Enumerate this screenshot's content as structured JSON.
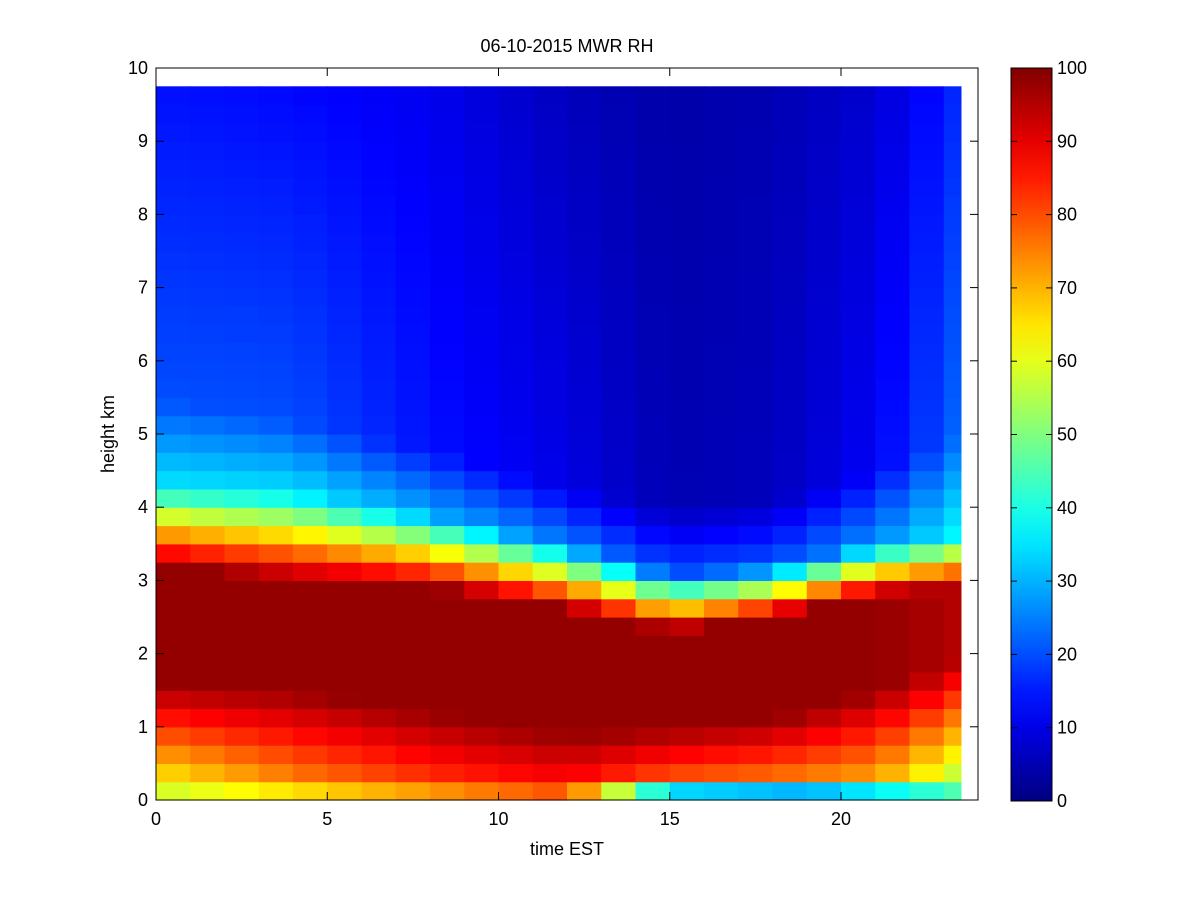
{
  "chart_data": {
    "type": "heatmap",
    "title": "06-10-2015 MWR RH",
    "xlabel": "time EST",
    "ylabel": "height km",
    "xlim": [
      0,
      24
    ],
    "ylim": [
      0,
      10
    ],
    "x_ticks": [
      0,
      5,
      10,
      15,
      20
    ],
    "y_ticks": [
      0,
      1,
      2,
      3,
      4,
      5,
      6,
      7,
      8,
      9,
      10
    ],
    "colormap": "jet",
    "color_limits": [
      0,
      100
    ],
    "colorbar_ticks": [
      0,
      10,
      20,
      30,
      40,
      50,
      60,
      70,
      80,
      90,
      100
    ],
    "x_start": 0,
    "x_end": 23.5,
    "x_step": 1,
    "y_top": 9.75,
    "grid": false,
    "rh_profiles": [
      {
        "time": 0,
        "low": 60,
        "mid": 98,
        "mid_bottom": 1.6,
        "mid_top": 3.2,
        "upper": 20,
        "blend_top": 4.3,
        "upper_top": 5.5,
        "top": 14
      },
      {
        "time": 4,
        "low": 72,
        "mid": 98,
        "mid_bottom": 1.5,
        "mid_top": 3.0,
        "upper": 20,
        "blend_top": 4.2,
        "upper_top": 5.2,
        "top": 13
      },
      {
        "time": 8,
        "low": 80,
        "mid": 98,
        "mid_bottom": 1.2,
        "mid_top": 2.9,
        "upper": 14,
        "blend_top": 3.9,
        "upper_top": 4.8,
        "top": 11
      },
      {
        "time": 12,
        "low": 85,
        "mid": 98,
        "mid_bottom": 0.9,
        "mid_top": 2.6,
        "upper": 10,
        "blend_top": 3.5,
        "upper_top": 4.3,
        "top": 6
      },
      {
        "time": 15,
        "low": 75,
        "mid": 98,
        "mid_bottom": 1.0,
        "mid_top": 2.3,
        "upper": 5,
        "blend_top": 3.1,
        "upper_top": 4.0,
        "top": 4
      },
      {
        "time": 18,
        "low": 72,
        "mid": 98,
        "mid_bottom": 1.1,
        "mid_top": 2.5,
        "upper": 6,
        "blend_top": 3.2,
        "upper_top": 4.1,
        "top": 5
      },
      {
        "time": 21,
        "low": 68,
        "mid": 98,
        "mid_bottom": 1.5,
        "mid_top": 2.8,
        "upper": 12,
        "blend_top": 3.5,
        "upper_top": 4.5,
        "top": 8
      },
      {
        "time": 23.5,
        "low": 52,
        "mid": 95,
        "mid_bottom": 1.9,
        "mid_top": 2.9,
        "upper": 22,
        "blend_top": 3.6,
        "upper_top": 5.0,
        "top": 16
      }
    ],
    "surface_rh": [
      {
        "time": 0,
        "value": 58
      },
      {
        "time": 12,
        "value": 80
      },
      {
        "time": 15,
        "value": 34
      },
      {
        "time": 19,
        "value": 30
      },
      {
        "time": 23.5,
        "value": 45
      }
    ]
  }
}
